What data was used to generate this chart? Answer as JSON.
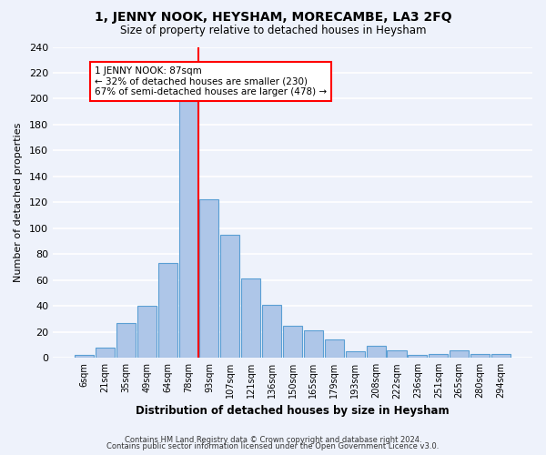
{
  "title": "1, JENNY NOOK, HEYSHAM, MORECAMBE, LA3 2FQ",
  "subtitle": "Size of property relative to detached houses in Heysham",
  "xlabel": "Distribution of detached houses by size in Heysham",
  "ylabel": "Number of detached properties",
  "bar_labels": [
    "6sqm",
    "21sqm",
    "35sqm",
    "49sqm",
    "64sqm",
    "78sqm",
    "93sqm",
    "107sqm",
    "121sqm",
    "136sqm",
    "150sqm",
    "165sqm",
    "179sqm",
    "193sqm",
    "208sqm",
    "222sqm",
    "236sqm",
    "251sqm",
    "265sqm",
    "280sqm",
    "294sqm"
  ],
  "bar_heights": [
    2,
    8,
    27,
    40,
    73,
    198,
    122,
    95,
    61,
    41,
    25,
    21,
    14,
    5,
    9,
    6,
    2,
    3,
    6,
    3,
    3
  ],
  "bar_color": "#aec6e8",
  "bar_edge_color": "#5a9fd4",
  "vline_x_index": 5,
  "vline_color": "red",
  "annotation_title": "1 JENNY NOOK: 87sqm",
  "annotation_line1": "← 32% of detached houses are smaller (230)",
  "annotation_line2": "67% of semi-detached houses are larger (478) →",
  "annotation_box_color": "white",
  "annotation_box_edge": "red",
  "ylim": [
    0,
    240
  ],
  "yticks": [
    0,
    20,
    40,
    60,
    80,
    100,
    120,
    140,
    160,
    180,
    200,
    220,
    240
  ],
  "footer1": "Contains HM Land Registry data © Crown copyright and database right 2024.",
  "footer2": "Contains public sector information licensed under the Open Government Licence v3.0.",
  "bg_color": "#eef2fb",
  "grid_color": "white"
}
